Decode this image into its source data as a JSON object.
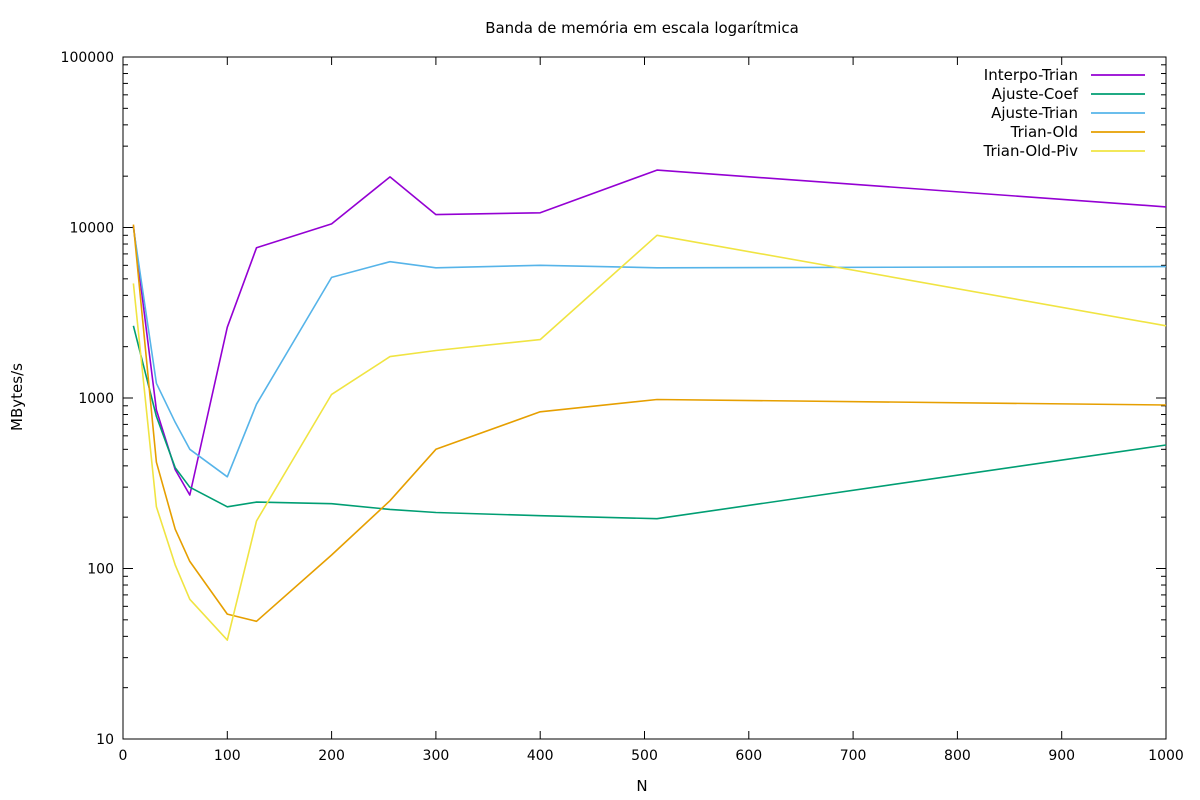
{
  "chart_data": {
    "type": "line",
    "title": "Banda de memória em escala logarítmica",
    "xlabel": "N",
    "ylabel": "MBytes/s",
    "xlim": [
      0,
      1000
    ],
    "ylim": [
      10,
      100000
    ],
    "yscale": "log",
    "grid": false,
    "legend_position": "top-right",
    "x_ticks": [
      0,
      100,
      200,
      300,
      400,
      500,
      600,
      700,
      800,
      900,
      1000
    ],
    "x_tick_labels": [
      "0",
      "100",
      "200",
      "300",
      "400",
      "500",
      "600",
      "700",
      "800",
      "900",
      "1000"
    ],
    "y_ticks": [
      10,
      100,
      1000,
      10000,
      100000
    ],
    "y_tick_labels": [
      "10",
      "100",
      "1000",
      "10000",
      "100000"
    ],
    "series": [
      {
        "name": "Interpo-Trian",
        "color": "#9400d3",
        "x": [
          10,
          32,
          50,
          64,
          100,
          128,
          200,
          256,
          300,
          400,
          512,
          1000
        ],
        "y": [
          10200,
          850,
          380,
          270,
          2600,
          7600,
          10500,
          19800,
          11900,
          12200,
          21700,
          13200
        ]
      },
      {
        "name": "Ajuste-Coef",
        "color": "#009e73",
        "x": [
          10,
          32,
          50,
          64,
          100,
          128,
          200,
          256,
          300,
          400,
          512,
          1000
        ],
        "y": [
          2650,
          780,
          390,
          300,
          230,
          245,
          240,
          222,
          213,
          204,
          196,
          530
        ]
      },
      {
        "name": "Ajuste-Trian",
        "color": "#56b4e9",
        "x": [
          10,
          32,
          50,
          64,
          100,
          128,
          200,
          256,
          300,
          400,
          512,
          1000
        ],
        "y": [
          10000,
          1220,
          720,
          500,
          345,
          920,
          5100,
          6300,
          5800,
          6000,
          5800,
          5900
        ]
      },
      {
        "name": "Trian-Old",
        "color": "#e69f00",
        "x": [
          10,
          32,
          50,
          64,
          100,
          128,
          200,
          256,
          300,
          400,
          512,
          1000
        ],
        "y": [
          10400,
          420,
          170,
          110,
          54,
          49,
          120,
          250,
          500,
          830,
          980,
          910
        ]
      },
      {
        "name": "Trian-Old-Piv",
        "color": "#f0e442",
        "x": [
          10,
          32,
          50,
          64,
          100,
          128,
          200,
          256,
          300,
          400,
          512,
          1000
        ],
        "y": [
          4700,
          230,
          105,
          66,
          38,
          190,
          1050,
          1750,
          1900,
          2200,
          9000,
          2650
        ]
      }
    ]
  }
}
